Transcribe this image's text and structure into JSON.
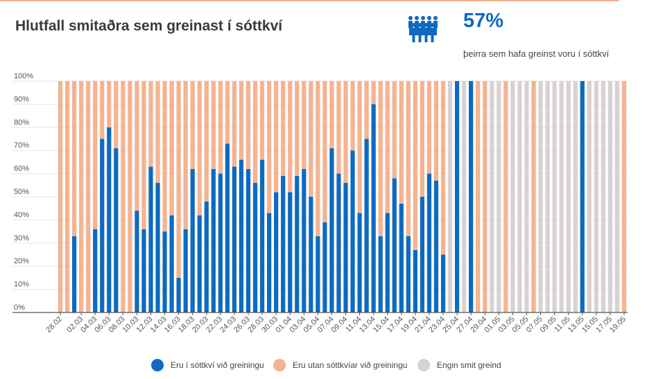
{
  "header": {
    "title": "Hlutfall smitaðra sem greinast í sóttkví",
    "highlight_value": "57%",
    "highlight_text": "þeirra sem hafa greinst voru í sóttkví",
    "icon": "people-group-icon"
  },
  "colors": {
    "quarantine": "#0e6ac0",
    "outside": "#f5b390",
    "none": "#d8d3d2",
    "grid": "#e6e6e6",
    "axis": "#555555",
    "accent_rule": "#f5b390"
  },
  "legend": [
    {
      "label": "Eru í sóttkví við greiningu",
      "color_key": "quarantine"
    },
    {
      "label": "Eru utan sóttkvíar við greiningu",
      "color_key": "outside"
    },
    {
      "label": "Engin smit greind",
      "color_key": "none"
    }
  ],
  "chart_data": {
    "type": "bar",
    "stacked": true,
    "ylim": [
      0,
      100
    ],
    "yticks": [
      "0%",
      "10%",
      "20%",
      "30%",
      "40%",
      "50%",
      "60%",
      "70%",
      "80%",
      "90%",
      "100%"
    ],
    "categories": [
      "28.02",
      "29.02",
      "01.03",
      "02.03",
      "03.03",
      "04.03",
      "05.03",
      "06.03",
      "07.03",
      "08.03",
      "09.03",
      "10.03",
      "11.03",
      "12.03",
      "13.03",
      "14.03",
      "15.03",
      "16.03",
      "17.03",
      "18.03",
      "19.03",
      "20.03",
      "21.03",
      "22.03",
      "23.03",
      "24.03",
      "25.03",
      "26.03",
      "27.03",
      "28.03",
      "29.03",
      "30.03",
      "31.03",
      "01.04",
      "02.04",
      "03.04",
      "04.04",
      "05.04",
      "06.04",
      "07.04",
      "08.04",
      "09.04",
      "10.04",
      "11.04",
      "12.04",
      "13.04",
      "14.04",
      "15.04",
      "16.04",
      "17.04",
      "18.04",
      "19.04",
      "20.04",
      "21.04",
      "22.04",
      "23.04",
      "24.04",
      "25.04",
      "26.04",
      "27.04",
      "28.04",
      "29.04",
      "30.04",
      "01.05",
      "02.05",
      "03.05",
      "04.05",
      "05.05",
      "06.05",
      "07.05",
      "08.05",
      "09.05",
      "10.05",
      "11.05",
      "12.05",
      "13.05",
      "14.05",
      "15.05",
      "16.05",
      "17.05",
      "18.05",
      "19.05"
    ],
    "tick_labels": [
      "28.02",
      "02.03",
      "04.03",
      "06.03",
      "08.03",
      "10.03",
      "12.03",
      "14.03",
      "16.03",
      "18.03",
      "20.03",
      "22.03",
      "24.03",
      "26.03",
      "28.03",
      "30.03",
      "01.04",
      "03.04",
      "05.04",
      "07.04",
      "09.04",
      "11.04",
      "13.04",
      "15.04",
      "17.04",
      "19.04",
      "21.04",
      "23.04",
      "25.04",
      "27.04",
      "29.04",
      "01.05",
      "03.05",
      "05.05",
      "07.05",
      "09.05",
      "11.05",
      "13.05",
      "15.05",
      "17.05",
      "19.05"
    ],
    "series": [
      {
        "name": "Eru í sóttkví við greiningu",
        "values": [
          0,
          0,
          33,
          0,
          0,
          36,
          75,
          80,
          71,
          0,
          0,
          44,
          36,
          63,
          56,
          35,
          42,
          15,
          36,
          62,
          42,
          48,
          62,
          60,
          73,
          63,
          66,
          62,
          56,
          66,
          43,
          52,
          59,
          52,
          59,
          62,
          50,
          33,
          39,
          71,
          60,
          56,
          70,
          43,
          75,
          90,
          33,
          43,
          58,
          47,
          33,
          27,
          50,
          60,
          57,
          25,
          0,
          100,
          0,
          100,
          0,
          0,
          0,
          0,
          0,
          0,
          0,
          0,
          0,
          0,
          0,
          0,
          0,
          0,
          0,
          100,
          0,
          0,
          0,
          0,
          0,
          0
        ]
      },
      {
        "name": "Eru utan sóttkvíar við greiningu",
        "values": [
          100,
          100,
          67,
          100,
          100,
          64,
          25,
          20,
          29,
          100,
          100,
          56,
          64,
          37,
          44,
          65,
          58,
          85,
          64,
          38,
          58,
          52,
          38,
          40,
          27,
          37,
          34,
          38,
          44,
          34,
          57,
          48,
          41,
          48,
          41,
          38,
          50,
          67,
          61,
          29,
          40,
          44,
          30,
          57,
          25,
          10,
          67,
          57,
          42,
          53,
          67,
          73,
          50,
          40,
          43,
          75,
          0,
          0,
          0,
          0,
          100,
          100,
          0,
          0,
          100,
          0,
          0,
          0,
          100,
          0,
          0,
          0,
          0,
          0,
          0,
          0,
          0,
          0,
          0,
          0,
          0,
          100
        ]
      },
      {
        "name": "Engin smit greind",
        "values": [
          0,
          0,
          0,
          0,
          0,
          0,
          0,
          0,
          0,
          0,
          0,
          0,
          0,
          0,
          0,
          0,
          0,
          0,
          0,
          0,
          0,
          0,
          0,
          0,
          0,
          0,
          0,
          0,
          0,
          0,
          0,
          0,
          0,
          0,
          0,
          0,
          0,
          0,
          0,
          0,
          0,
          0,
          0,
          0,
          0,
          0,
          0,
          0,
          0,
          0,
          0,
          0,
          0,
          0,
          0,
          0,
          100,
          0,
          100,
          0,
          0,
          0,
          100,
          100,
          0,
          100,
          100,
          100,
          0,
          100,
          100,
          100,
          100,
          100,
          100,
          0,
          100,
          100,
          100,
          100,
          100,
          0
        ]
      }
    ]
  }
}
